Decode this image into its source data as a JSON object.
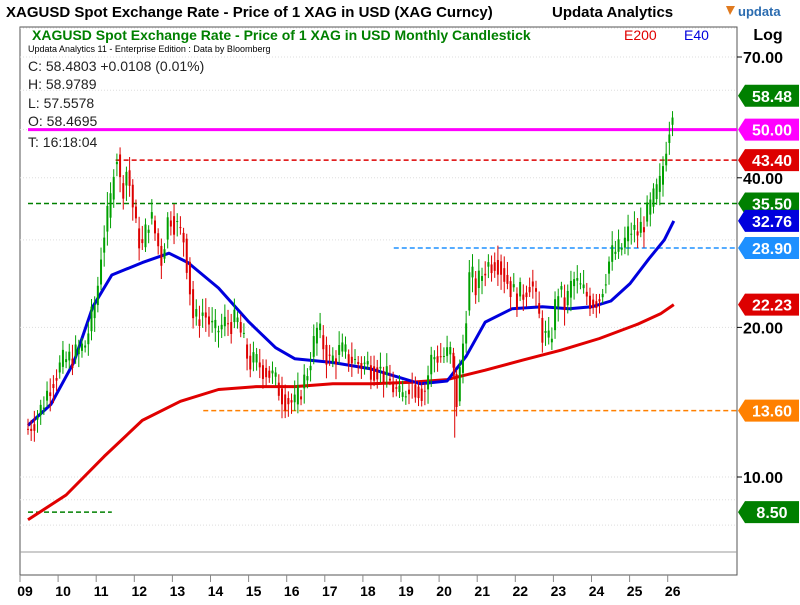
{
  "header": {
    "title": "XAGUSD Spot Exchange Rate - Price of 1 XAG in USD (XAG Curncy)",
    "vendor": "Updata Analytics",
    "logo_text": "updata",
    "scale_mode": "Log"
  },
  "chart_data": {
    "type": "candlestick",
    "title": "XAGUSD Spot Exchange Rate - Price of 1 XAG in USD Monthly Candlestick",
    "subtitle": "Updata Analytics 11 - Enterprise Edition : Data by Bloomberg",
    "indicators": [
      {
        "name": "E200",
        "color": "#e00000"
      },
      {
        "name": "E40",
        "color": "#0000dd"
      }
    ],
    "ohlc_readout": {
      "close": "C: 58.4803  +0.0108 (0.01%)",
      "high": "H: 58.9789",
      "low": "L: 57.5578",
      "open": "O: 58.4695",
      "time": "T: 16:18:04"
    },
    "y_scale": "log",
    "y_range": [
      6.9,
      80
    ],
    "y_ticks": [
      {
        "value": 70,
        "label": "70.00"
      },
      {
        "value": 40,
        "label": "40.00"
      },
      {
        "value": 20,
        "label": "20.00"
      },
      {
        "value": 10,
        "label": "10.00"
      }
    ],
    "x_range": [
      2009.0,
      2027.0
    ],
    "x_ticks": [
      {
        "value": 2009,
        "label": "09"
      },
      {
        "value": 2010,
        "label": "10"
      },
      {
        "value": 2011,
        "label": "11"
      },
      {
        "value": 2012,
        "label": "12"
      },
      {
        "value": 2013,
        "label": "13"
      },
      {
        "value": 2014,
        "label": "14"
      },
      {
        "value": 2015,
        "label": "15"
      },
      {
        "value": 2016,
        "label": "16"
      },
      {
        "value": 2017,
        "label": "17"
      },
      {
        "value": 2018,
        "label": "18"
      },
      {
        "value": 2019,
        "label": "19"
      },
      {
        "value": 2020,
        "label": "20"
      },
      {
        "value": 2021,
        "label": "21"
      },
      {
        "value": 2022,
        "label": "22"
      },
      {
        "value": 2023,
        "label": "23"
      },
      {
        "value": 2024,
        "label": "24"
      },
      {
        "value": 2025,
        "label": "25"
      },
      {
        "value": 2026,
        "label": "26"
      }
    ],
    "price_path": [
      [
        2009.0,
        12.5
      ],
      [
        2009.3,
        13.5
      ],
      [
        2009.6,
        15.5
      ],
      [
        2009.9,
        17.0
      ],
      [
        2010.2,
        17.5
      ],
      [
        2010.5,
        18.5
      ],
      [
        2010.8,
        23.0
      ],
      [
        2010.95,
        30.0
      ],
      [
        2011.15,
        35.0
      ],
      [
        2011.3,
        47.0
      ],
      [
        2011.45,
        37.0
      ],
      [
        2011.6,
        42.0
      ],
      [
        2011.85,
        31.0
      ],
      [
        2012.0,
        29.0
      ],
      [
        2012.2,
        34.0
      ],
      [
        2012.5,
        27.5
      ],
      [
        2012.7,
        34.0
      ],
      [
        2012.9,
        32.0
      ],
      [
        2013.1,
        30.0
      ],
      [
        2013.35,
        20.5
      ],
      [
        2013.6,
        21.5
      ],
      [
        2013.9,
        19.5
      ],
      [
        2014.2,
        20.5
      ],
      [
        2014.5,
        20.5
      ],
      [
        2014.8,
        17.0
      ],
      [
        2015.0,
        17.0
      ],
      [
        2015.4,
        16.0
      ],
      [
        2015.7,
        14.5
      ],
      [
        2016.0,
        14.0
      ],
      [
        2016.3,
        16.0
      ],
      [
        2016.6,
        20.0
      ],
      [
        2016.9,
        17.0
      ],
      [
        2017.2,
        18.0
      ],
      [
        2017.6,
        17.0
      ],
      [
        2017.9,
        16.8
      ],
      [
        2018.2,
        16.5
      ],
      [
        2018.5,
        15.5
      ],
      [
        2018.8,
        14.3
      ],
      [
        2019.0,
        15.5
      ],
      [
        2019.4,
        14.8
      ],
      [
        2019.6,
        17.5
      ],
      [
        2019.9,
        17.5
      ],
      [
        2020.1,
        17.8
      ],
      [
        2020.25,
        14.2
      ],
      [
        2020.4,
        18.0
      ],
      [
        2020.6,
        26.0
      ],
      [
        2020.75,
        24.0
      ],
      [
        2021.0,
        26.5
      ],
      [
        2021.3,
        27.5
      ],
      [
        2021.5,
        25.5
      ],
      [
        2021.8,
        23.0
      ],
      [
        2022.0,
        23.5
      ],
      [
        2022.2,
        25.0
      ],
      [
        2022.5,
        19.5
      ],
      [
        2022.7,
        18.5
      ],
      [
        2022.9,
        24.0
      ],
      [
        2023.1,
        22.0
      ],
      [
        2023.3,
        25.0
      ],
      [
        2023.6,
        23.5
      ],
      [
        2023.8,
        22.5
      ],
      [
        2024.0,
        23.0
      ],
      [
        2024.3,
        28.0
      ],
      [
        2024.6,
        29.0
      ],
      [
        2024.8,
        31.5
      ],
      [
        2025.0,
        31.0
      ],
      [
        2025.2,
        33.0
      ],
      [
        2025.4,
        36.0
      ],
      [
        2025.6,
        39.0
      ],
      [
        2025.75,
        47.0
      ],
      [
        2025.85,
        52.0
      ],
      [
        2025.95,
        58.48
      ]
    ],
    "series": [
      {
        "name": "E200",
        "color": "#e00000",
        "points": [
          [
            2009.0,
            8.2
          ],
          [
            2010.0,
            9.2
          ],
          [
            2011.0,
            11.0
          ],
          [
            2012.0,
            13.0
          ],
          [
            2013.0,
            14.2
          ],
          [
            2014.0,
            15.0
          ],
          [
            2015.0,
            15.2
          ],
          [
            2016.0,
            15.2
          ],
          [
            2017.0,
            15.4
          ],
          [
            2018.0,
            15.4
          ],
          [
            2019.0,
            15.5
          ],
          [
            2020.0,
            15.7
          ],
          [
            2021.0,
            16.4
          ],
          [
            2022.0,
            17.2
          ],
          [
            2023.0,
            18.0
          ],
          [
            2024.0,
            19.0
          ],
          [
            2025.0,
            20.3
          ],
          [
            2025.6,
            21.3
          ],
          [
            2025.95,
            22.23
          ]
        ]
      },
      {
        "name": "E40",
        "color": "#0000dd",
        "points": [
          [
            2009.0,
            12.7
          ],
          [
            2009.6,
            14.0
          ],
          [
            2010.2,
            17.0
          ],
          [
            2010.7,
            22.0
          ],
          [
            2011.2,
            25.5
          ],
          [
            2012.0,
            27.0
          ],
          [
            2012.7,
            28.2
          ],
          [
            2013.2,
            27.0
          ],
          [
            2014.0,
            24.0
          ],
          [
            2014.8,
            20.5
          ],
          [
            2015.5,
            18.2
          ],
          [
            2016.0,
            17.3
          ],
          [
            2017.0,
            17.0
          ],
          [
            2018.0,
            16.5
          ],
          [
            2018.7,
            15.9
          ],
          [
            2019.3,
            15.4
          ],
          [
            2020.0,
            15.6
          ],
          [
            2020.5,
            17.5
          ],
          [
            2021.0,
            20.5
          ],
          [
            2021.7,
            21.8
          ],
          [
            2022.5,
            22.0
          ],
          [
            2023.2,
            21.8
          ],
          [
            2023.8,
            22.0
          ],
          [
            2024.3,
            22.6
          ],
          [
            2024.8,
            24.5
          ],
          [
            2025.3,
            27.5
          ],
          [
            2025.7,
            30.0
          ],
          [
            2025.95,
            32.76
          ]
        ]
      }
    ],
    "levels": [
      {
        "value": 50.0,
        "label": "50.00",
        "color": "#ff00ff",
        "style": "solid",
        "x_start": 2009.0
      },
      {
        "value": 43.4,
        "label": "43.40",
        "color": "#dd0000",
        "style": "dashed",
        "x_start": 2011.3
      },
      {
        "value": 35.5,
        "label": "35.50",
        "color": "#008000",
        "style": "dashed",
        "x_start": 2009.0
      },
      {
        "value": 28.9,
        "label": "28.90",
        "color": "#1e90ff",
        "style": "dashed",
        "x_start": 2018.6
      },
      {
        "value": 13.6,
        "label": "13.60",
        "color": "#ff8000",
        "style": "dashed",
        "x_start": 2013.6
      },
      {
        "value": 8.5,
        "label": "8.50",
        "color": "#008000",
        "style": "dashed",
        "x_start": 2009.0,
        "x_end": 2011.2
      }
    ],
    "value_tags": [
      {
        "value": 58.48,
        "label": "58.48",
        "color": "#008000"
      },
      {
        "value": 50.0,
        "label": "50.00",
        "color": "#ff00ff"
      },
      {
        "value": 43.4,
        "label": "43.40",
        "color": "#dd0000"
      },
      {
        "value": 35.5,
        "label": "35.50",
        "color": "#008000"
      },
      {
        "value": 32.76,
        "label": "32.76",
        "color": "#0000dd"
      },
      {
        "value": 28.9,
        "label": "28.90",
        "color": "#1e90ff"
      },
      {
        "value": 22.23,
        "label": "22.23",
        "color": "#dd0000"
      },
      {
        "value": 13.6,
        "label": "13.60",
        "color": "#ff8000"
      },
      {
        "value": 8.5,
        "label": "8.50",
        "color": "#008000"
      }
    ],
    "grid": true
  }
}
